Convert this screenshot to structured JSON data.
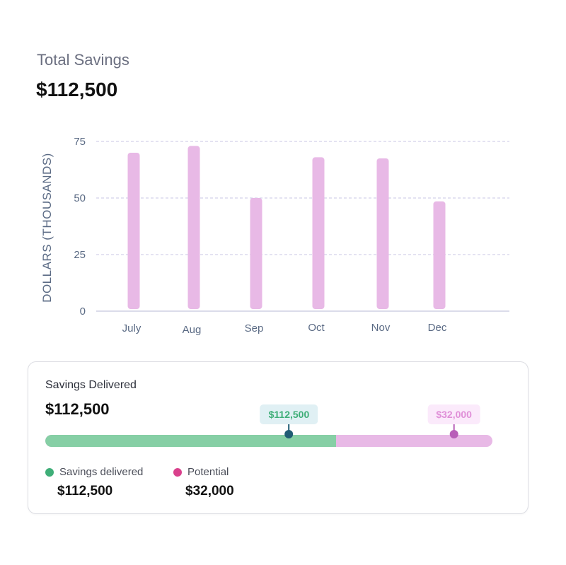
{
  "header": {
    "title": "Total Savings",
    "total": "$112,500"
  },
  "chart_data": {
    "type": "bar",
    "categories": [
      "July",
      "Aug",
      "Sep",
      "Oct",
      "Nov",
      "Dec"
    ],
    "values": [
      70,
      73,
      50,
      68,
      67.5,
      48.5
    ],
    "ylabel": "DOLLARS (THOUSANDS)",
    "xlabel": "",
    "ylim": [
      0,
      75
    ],
    "yticks": [
      0,
      25,
      50,
      75
    ],
    "grid": true,
    "bar_color": "#e8b9e6",
    "grid_color": "#c9c6e6",
    "axis_color": "#cfd0e4",
    "tick_color": "#5a6a84"
  },
  "card": {
    "title": "Savings Delivered",
    "value": "$112,500",
    "delivered_fraction": 0.65,
    "delivered_marker_fraction": 0.545,
    "potential_marker_fraction": 0.914,
    "markers": {
      "delivered": "$112,500",
      "potential": "$32,000"
    },
    "legend": [
      {
        "label": "Savings delivered",
        "value": "$112,500",
        "color": "#3fae78"
      },
      {
        "label": "Potential",
        "value": "$32,000",
        "color": "#d9408c"
      }
    ],
    "colors": {
      "delivered_bar": "#86cfa5",
      "potential_bar": "#e8b9e6",
      "delivered_label_bg": "#e0f0f4",
      "delivered_label_text": "#3fae78",
      "delivered_dot": "#1f5c74",
      "potential_label_bg": "#fbeafb",
      "potential_label_text": "#e08fd8",
      "potential_dot": "#b85eb8"
    }
  }
}
